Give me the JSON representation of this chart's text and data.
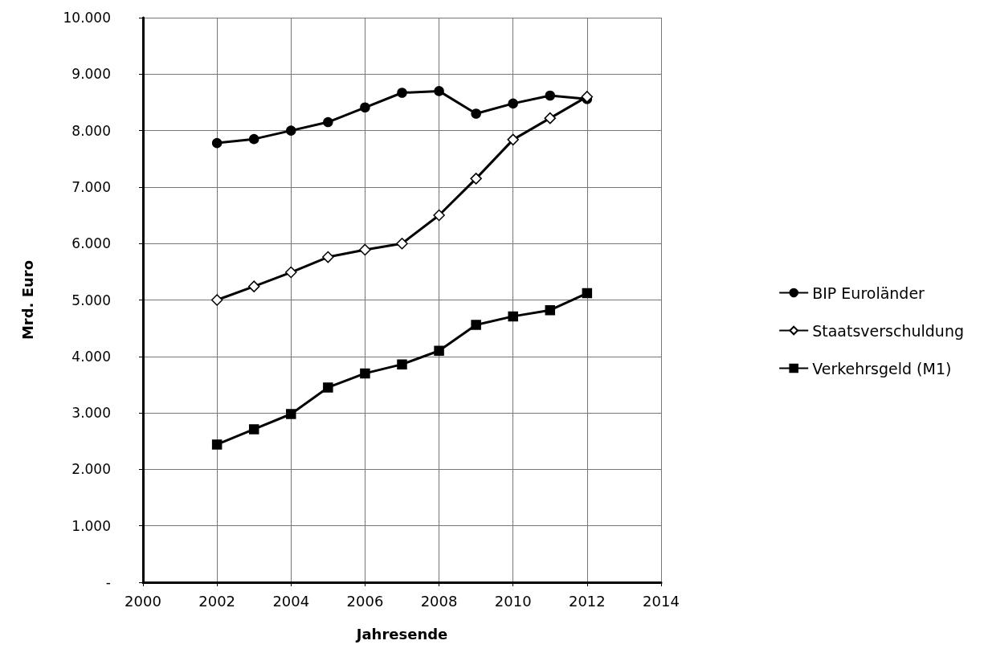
{
  "chart_data": {
    "type": "line",
    "xlabel": "Jahresende",
    "ylabel": "Mrd. Euro",
    "x": [
      2002,
      2003,
      2004,
      2005,
      2006,
      2007,
      2008,
      2009,
      2010,
      2011,
      2012
    ],
    "series": [
      {
        "name": "BIP Euroländer",
        "color": "#000000",
        "marker": "circle",
        "values": [
          7780,
          7850,
          8000,
          8150,
          8410,
          8670,
          8700,
          8300,
          8480,
          8620,
          8560
        ]
      },
      {
        "name": "Staatsverschuldung",
        "color": "#000000",
        "marker": "diamond",
        "values": [
          5000,
          5240,
          5490,
          5760,
          5890,
          6000,
          6500,
          7150,
          7840,
          8220,
          8600
        ]
      },
      {
        "name": "Verkehrsgeld (M1)",
        "color": "#000000",
        "marker": "square",
        "values": [
          2440,
          2710,
          2980,
          3450,
          3700,
          3860,
          4100,
          4560,
          4710,
          4820,
          5120
        ]
      }
    ],
    "xlim": [
      2000,
      2014
    ],
    "xticks": [
      2000,
      2002,
      2004,
      2006,
      2008,
      2010,
      2012,
      2014
    ],
    "ylim": [
      0,
      10000
    ],
    "yticks": [
      {
        "value": 0,
        "label": "-"
      },
      {
        "value": 1000,
        "label": "1.000"
      },
      {
        "value": 2000,
        "label": "2.000"
      },
      {
        "value": 3000,
        "label": "3.000"
      },
      {
        "value": 4000,
        "label": "4.000"
      },
      {
        "value": 5000,
        "label": "5.000"
      },
      {
        "value": 6000,
        "label": "6.000"
      },
      {
        "value": 7000,
        "label": "7.000"
      },
      {
        "value": 8000,
        "label": "8.000"
      },
      {
        "value": 9000,
        "label": "9.000"
      },
      {
        "value": 10000,
        "label": "10.000"
      }
    ],
    "grid": true,
    "legend": "right",
    "line_style": "solid"
  }
}
